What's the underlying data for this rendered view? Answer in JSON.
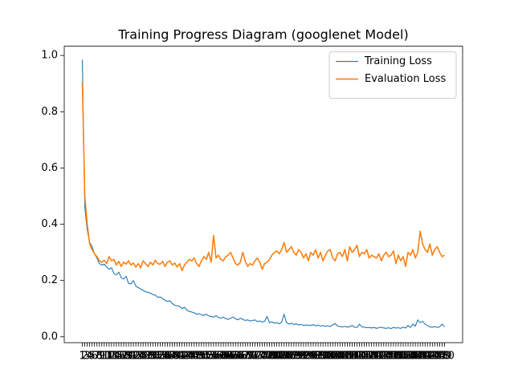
{
  "chart_data": {
    "type": "line",
    "title": "Training Progress Diagram (googlenet Model)",
    "x": [
      1,
      2,
      3,
      4,
      5,
      6,
      7,
      8,
      9,
      10,
      11,
      12,
      13,
      14,
      15,
      16,
      17,
      18,
      19,
      20,
      21,
      22,
      23,
      24,
      25,
      26,
      27,
      28,
      29,
      30,
      31,
      32,
      33,
      34,
      35,
      36,
      37,
      38,
      39,
      40,
      41,
      42,
      43,
      44,
      45,
      46,
      47,
      48,
      49,
      50,
      51,
      52,
      53,
      54,
      55,
      56,
      57,
      58,
      59,
      60,
      61,
      62,
      63,
      64,
      65,
      66,
      67,
      68,
      69,
      70,
      71,
      72,
      73,
      74,
      75,
      76,
      77,
      78,
      79,
      80,
      81,
      82,
      83,
      84,
      85,
      86,
      87,
      88,
      89,
      90,
      91,
      92,
      93,
      94,
      95,
      96,
      97,
      98,
      99,
      100,
      101,
      102,
      103,
      104,
      105,
      106,
      107,
      108,
      109,
      110,
      111,
      112,
      113,
      114,
      115,
      116,
      117,
      118,
      119,
      120,
      121,
      122,
      123,
      124,
      125,
      126,
      127,
      128,
      129,
      130,
      131,
      132,
      133,
      134,
      135,
      136,
      137,
      138,
      139,
      140,
      141,
      142,
      143,
      144,
      145,
      146,
      147,
      148,
      149,
      150
    ],
    "series": [
      {
        "name": "Training Loss",
        "color": "#1f77b4",
        "values": [
          0.985,
          0.46,
          0.38,
          0.335,
          0.32,
          0.295,
          0.28,
          0.26,
          0.255,
          0.258,
          0.248,
          0.24,
          0.245,
          0.225,
          0.22,
          0.23,
          0.21,
          0.205,
          0.215,
          0.19,
          0.188,
          0.2,
          0.18,
          0.175,
          0.17,
          0.165,
          0.16,
          0.158,
          0.155,
          0.15,
          0.148,
          0.14,
          0.142,
          0.135,
          0.13,
          0.125,
          0.128,
          0.118,
          0.112,
          0.11,
          0.108,
          0.1,
          0.105,
          0.095,
          0.09,
          0.088,
          0.085,
          0.08,
          0.082,
          0.078,
          0.076,
          0.08,
          0.074,
          0.072,
          0.07,
          0.075,
          0.068,
          0.066,
          0.07,
          0.064,
          0.062,
          0.066,
          0.07,
          0.064,
          0.06,
          0.066,
          0.062,
          0.058,
          0.06,
          0.056,
          0.058,
          0.06,
          0.054,
          0.056,
          0.052,
          0.055,
          0.072,
          0.05,
          0.053,
          0.048,
          0.05,
          0.046,
          0.052,
          0.08,
          0.05,
          0.045,
          0.048,
          0.044,
          0.046,
          0.042,
          0.044,
          0.04,
          0.042,
          0.041,
          0.04,
          0.043,
          0.039,
          0.041,
          0.038,
          0.04,
          0.037,
          0.039,
          0.036,
          0.042,
          0.047,
          0.038,
          0.036,
          0.035,
          0.037,
          0.034,
          0.036,
          0.04,
          0.034,
          0.033,
          0.045,
          0.035,
          0.034,
          0.032,
          0.033,
          0.031,
          0.033,
          0.03,
          0.032,
          0.034,
          0.031,
          0.03,
          0.032,
          0.029,
          0.033,
          0.031,
          0.032,
          0.03,
          0.034,
          0.031,
          0.04,
          0.033,
          0.045,
          0.038,
          0.06,
          0.05,
          0.055,
          0.045,
          0.04,
          0.035,
          0.034,
          0.036,
          0.033,
          0.035,
          0.045,
          0.035
        ]
      },
      {
        "name": "Evaluation Loss",
        "color": "#ff7f0e",
        "values": [
          0.905,
          0.5,
          0.4,
          0.33,
          0.31,
          0.295,
          0.285,
          0.27,
          0.265,
          0.272,
          0.26,
          0.285,
          0.27,
          0.275,
          0.255,
          0.268,
          0.25,
          0.265,
          0.258,
          0.27,
          0.255,
          0.262,
          0.248,
          0.26,
          0.245,
          0.27,
          0.26,
          0.25,
          0.265,
          0.255,
          0.272,
          0.26,
          0.258,
          0.268,
          0.25,
          0.265,
          0.27,
          0.255,
          0.262,
          0.248,
          0.26,
          0.235,
          0.255,
          0.265,
          0.275,
          0.27,
          0.28,
          0.26,
          0.25,
          0.27,
          0.285,
          0.275,
          0.3,
          0.265,
          0.36,
          0.28,
          0.29,
          0.275,
          0.27,
          0.285,
          0.29,
          0.3,
          0.28,
          0.26,
          0.255,
          0.265,
          0.3,
          0.27,
          0.25,
          0.26,
          0.255,
          0.27,
          0.28,
          0.265,
          0.24,
          0.26,
          0.265,
          0.275,
          0.29,
          0.3,
          0.305,
          0.295,
          0.31,
          0.335,
          0.3,
          0.31,
          0.32,
          0.3,
          0.29,
          0.31,
          0.3,
          0.28,
          0.295,
          0.27,
          0.3,
          0.29,
          0.31,
          0.28,
          0.3,
          0.27,
          0.29,
          0.305,
          0.31,
          0.28,
          0.27,
          0.295,
          0.3,
          0.285,
          0.31,
          0.27,
          0.32,
          0.3,
          0.31,
          0.325,
          0.285,
          0.3,
          0.295,
          0.31,
          0.28,
          0.29,
          0.285,
          0.28,
          0.295,
          0.27,
          0.29,
          0.3,
          0.285,
          0.29,
          0.305,
          0.26,
          0.29,
          0.27,
          0.285,
          0.25,
          0.3,
          0.29,
          0.31,
          0.28,
          0.3,
          0.375,
          0.33,
          0.31,
          0.3,
          0.33,
          0.29,
          0.31,
          0.32,
          0.3,
          0.285,
          0.29
        ]
      }
    ],
    "xlim": [
      -6.45,
      157.45
    ],
    "xticks": [
      1,
      2,
      3,
      4,
      5,
      6,
      7,
      8,
      9,
      10,
      11,
      12,
      13,
      14,
      15,
      16,
      17,
      18,
      19,
      20,
      21,
      22,
      23,
      24,
      25,
      26,
      27,
      28,
      29,
      30,
      31,
      32,
      33,
      34,
      35,
      36,
      37,
      38,
      39,
      40,
      41,
      42,
      43,
      44,
      45,
      46,
      47,
      48,
      49,
      50,
      51,
      52,
      53,
      54,
      55,
      56,
      57,
      58,
      59,
      60,
      61,
      62,
      63,
      64,
      65,
      66,
      67,
      68,
      69,
      70,
      71,
      72,
      73,
      74,
      75,
      76,
      77,
      78,
      79,
      80,
      81,
      82,
      83,
      84,
      85,
      86,
      87,
      88,
      89,
      90,
      91,
      92,
      93,
      94,
      95,
      96,
      97,
      98,
      99,
      100,
      101,
      102,
      103,
      104,
      105,
      106,
      107,
      108,
      109,
      110,
      111,
      112,
      113,
      114,
      115,
      116,
      117,
      118,
      119,
      120,
      121,
      122,
      123,
      124,
      125,
      126,
      127,
      128,
      129,
      130,
      131,
      132,
      133,
      134,
      135,
      136,
      137,
      138,
      139,
      140,
      141,
      142,
      143,
      144,
      145,
      146,
      147,
      148,
      149,
      150
    ],
    "ylim": [
      -0.021,
      1.033
    ],
    "yticks": [
      {
        "value": 0,
        "label": "0.0"
      },
      0.2,
      0.4,
      0.6,
      0.8,
      {
        "value": 1,
        "label": "1.0"
      }
    ],
    "legend": "upper right"
  }
}
